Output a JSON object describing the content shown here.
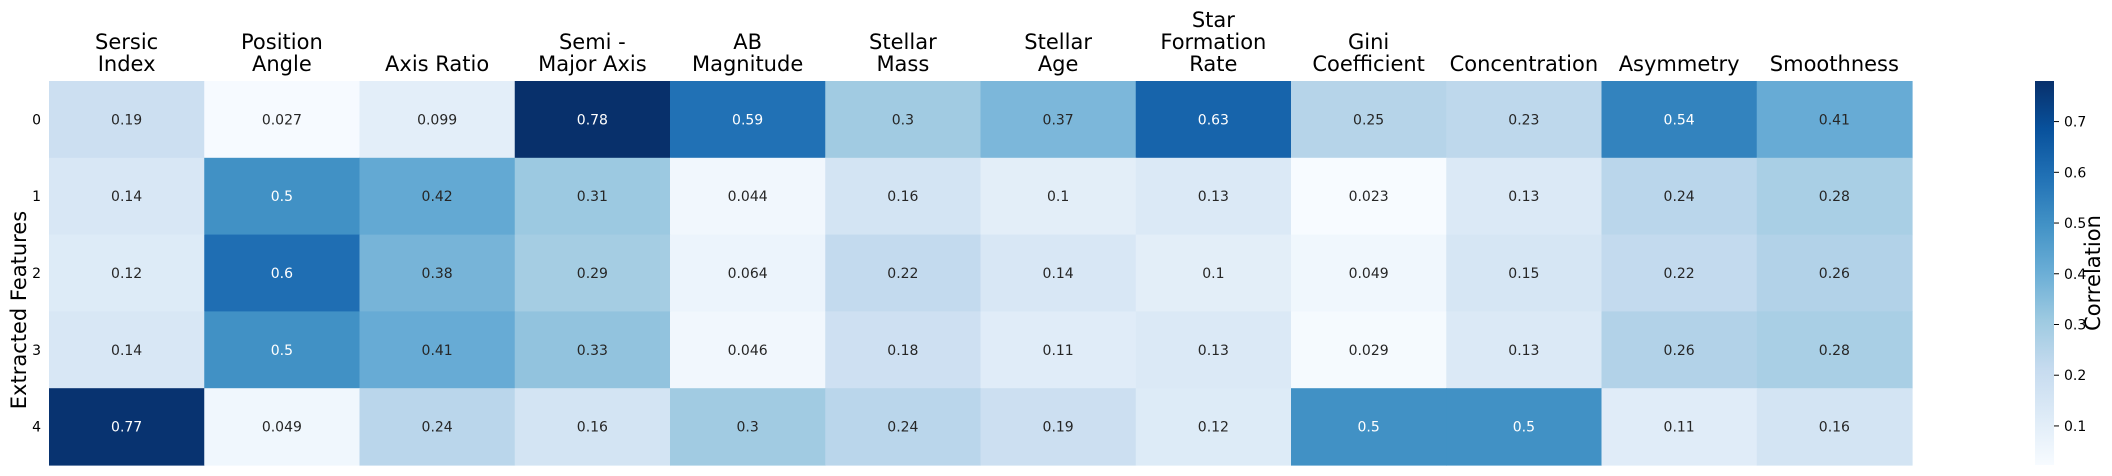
{
  "chart_data": {
    "type": "heatmap",
    "columns": [
      [
        "Sersic",
        "Index"
      ],
      [
        "Position",
        "Angle"
      ],
      [
        "Axis Ratio"
      ],
      [
        "Semi -",
        "Major Axis"
      ],
      [
        "AB",
        "Magnitude"
      ],
      [
        "Stellar",
        "Mass"
      ],
      [
        "Stellar",
        "Age"
      ],
      [
        "Star",
        "Formation",
        "Rate"
      ],
      [
        "Gini",
        "Coefficient"
      ],
      [
        "Concentration"
      ],
      [
        "Asymmetry"
      ],
      [
        "Smoothness"
      ]
    ],
    "rows": [
      "0",
      "1",
      "2",
      "3",
      "4"
    ],
    "values": [
      [
        0.19,
        0.027,
        0.099,
        0.78,
        0.59,
        0.3,
        0.37,
        0.63,
        0.25,
        0.23,
        0.54,
        0.41
      ],
      [
        0.14,
        0.5,
        0.42,
        0.31,
        0.044,
        0.16,
        0.1,
        0.13,
        0.023,
        0.13,
        0.24,
        0.28
      ],
      [
        0.12,
        0.6,
        0.38,
        0.29,
        0.064,
        0.22,
        0.14,
        0.1,
        0.049,
        0.15,
        0.22,
        0.26
      ],
      [
        0.14,
        0.5,
        0.41,
        0.33,
        0.046,
        0.18,
        0.11,
        0.13,
        0.029,
        0.13,
        0.26,
        0.28
      ],
      [
        0.77,
        0.049,
        0.24,
        0.16,
        0.3,
        0.24,
        0.19,
        0.12,
        0.5,
        0.5,
        0.11,
        0.16
      ]
    ],
    "ylabel": "Extracted Features",
    "colorbar_label": "Correlation",
    "colorbar_ticks": [
      "0.1",
      "0.2",
      "0.3",
      "0.4",
      "0.5",
      "0.6",
      "0.7"
    ],
    "colorbar_range": [
      0.023,
      0.78
    ],
    "colormap": "Blues",
    "grid": false
  }
}
